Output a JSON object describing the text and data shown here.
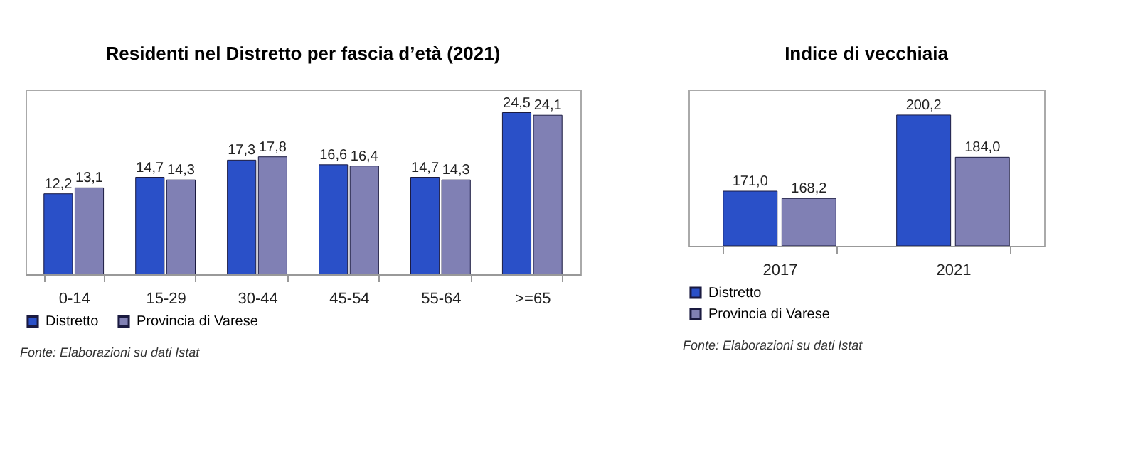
{
  "chart_data": [
    {
      "type": "bar",
      "title": "Residenti nel Distretto per fascia d’età (2021)",
      "categories": [
        "0-14",
        "15-29",
        "30-44",
        "45-54",
        "55-64",
        ">=65"
      ],
      "ylim": [
        0,
        28
      ],
      "tick_labels": "x",
      "legend": "bottom",
      "annotations": [
        "Fonte: Elaborazioni su dati Istat"
      ],
      "series": [
        {
          "name": "Distretto",
          "color": "#2a50c8",
          "values": [
            12.2,
            14.7,
            17.3,
            16.6,
            14.7,
            24.5
          ],
          "value_labels": [
            "12,2",
            "14,7",
            "17,3",
            "16,6",
            "14,7",
            "24,5"
          ]
        },
        {
          "name": "Provincia di Varese",
          "color": "#8080b4",
          "values": [
            13.1,
            14.3,
            17.8,
            16.4,
            14.3,
            24.1
          ],
          "value_labels": [
            "13,1",
            "14,3",
            "17,8",
            "16,4",
            "14,3",
            "24,1"
          ]
        }
      ]
    },
    {
      "type": "bar",
      "title": "Indice di vecchiaia",
      "categories": [
        "2017",
        "2021"
      ],
      "ylim": [
        150,
        210
      ],
      "tick_labels": "x",
      "legend": "bottom",
      "annotations": [
        "Fonte: Elaborazioni su dati Istat"
      ],
      "series": [
        {
          "name": "Distretto",
          "color": "#2a50c8",
          "values": [
            171.0,
            200.2
          ],
          "value_labels": [
            "171,0",
            "200,2"
          ]
        },
        {
          "name": "Provincia di Varese",
          "color": "#8080b4",
          "values": [
            168.2,
            184.0
          ],
          "value_labels": [
            "168,2",
            "184,0"
          ]
        }
      ]
    }
  ]
}
